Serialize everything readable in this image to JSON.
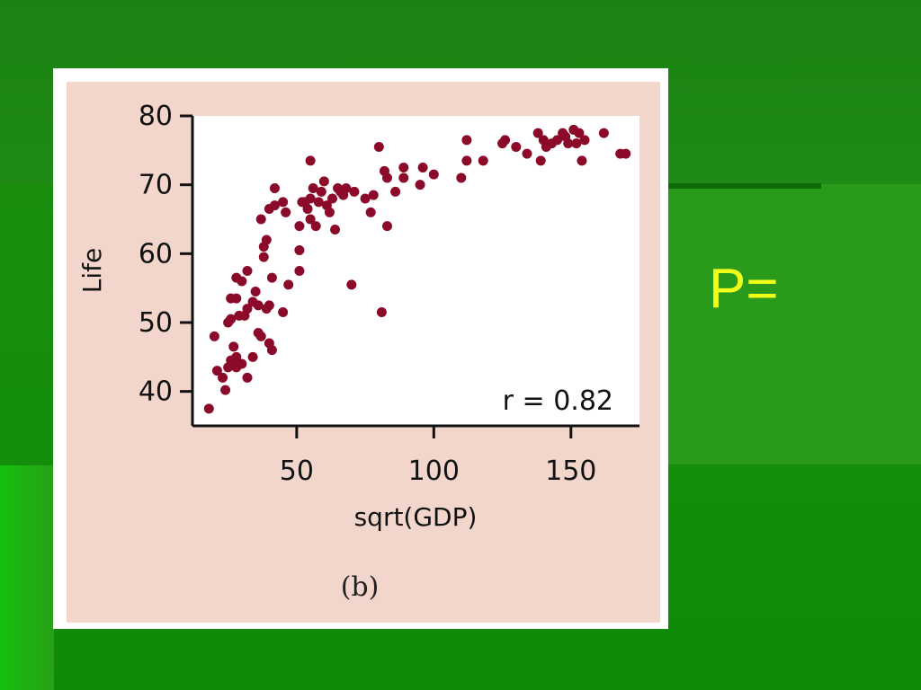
{
  "caption": "(b)",
  "side_text": "P=",
  "colors": {
    "point": "#8b0a2a",
    "panel_bg": "#f2d6cc",
    "plot_bg": "#ffffff"
  },
  "chart_data": {
    "type": "scatter",
    "title": "",
    "xlabel": "sqrt(GDP)",
    "ylabel": "Life",
    "xlim": [
      12,
      175
    ],
    "ylim": [
      35,
      80
    ],
    "xticks": [
      50,
      100,
      150
    ],
    "yticks": [
      40,
      50,
      60,
      70,
      80
    ],
    "xtick_labels": [
      "50",
      "100",
      "150"
    ],
    "ytick_labels": [
      "40",
      "50",
      "60",
      "70",
      "80"
    ],
    "annotation": "r = 0.82",
    "grid": false,
    "points": [
      [
        18,
        37.5
      ],
      [
        20,
        48
      ],
      [
        21,
        43
      ],
      [
        23,
        42
      ],
      [
        24,
        40.2
      ],
      [
        25,
        50
      ],
      [
        25,
        43.5
      ],
      [
        26,
        44.5
      ],
      [
        26,
        53.5
      ],
      [
        26,
        50.5
      ],
      [
        27,
        44
      ],
      [
        27,
        46.5
      ],
      [
        28,
        45
      ],
      [
        28,
        53.5
      ],
      [
        28,
        56.5
      ],
      [
        28,
        43.5
      ],
      [
        29,
        51
      ],
      [
        30,
        44
      ],
      [
        30,
        56
      ],
      [
        31,
        51
      ],
      [
        32,
        57.5
      ],
      [
        32,
        52
      ],
      [
        32,
        42
      ],
      [
        34,
        53
      ],
      [
        34,
        45
      ],
      [
        35,
        54.5
      ],
      [
        36,
        52.5
      ],
      [
        36,
        48.5
      ],
      [
        37,
        65
      ],
      [
        37,
        48
      ],
      [
        38,
        61
      ],
      [
        38,
        59.5
      ],
      [
        39,
        52
      ],
      [
        39,
        62
      ],
      [
        40,
        66.5
      ],
      [
        40,
        52.5
      ],
      [
        40,
        47
      ],
      [
        41,
        46
      ],
      [
        41,
        56.5
      ],
      [
        42,
        67
      ],
      [
        42,
        69.5
      ],
      [
        45,
        67.5
      ],
      [
        45,
        51.5
      ],
      [
        46,
        66
      ],
      [
        47,
        55.5
      ],
      [
        51,
        64
      ],
      [
        51,
        60.5
      ],
      [
        51,
        57.5
      ],
      [
        52,
        67.5
      ],
      [
        53,
        67.5
      ],
      [
        54,
        66.5
      ],
      [
        55,
        65
      ],
      [
        55,
        73.5
      ],
      [
        55,
        68
      ],
      [
        56,
        69.5
      ],
      [
        57,
        64
      ],
      [
        58,
        67.5
      ],
      [
        59,
        69
      ],
      [
        60,
        70.5
      ],
      [
        61,
        67
      ],
      [
        62,
        66
      ],
      [
        63,
        68
      ],
      [
        64,
        63.5
      ],
      [
        65,
        69.5
      ],
      [
        66,
        69
      ],
      [
        67,
        68.5
      ],
      [
        68,
        69.5
      ],
      [
        70,
        55.5
      ],
      [
        71,
        69
      ],
      [
        75,
        68
      ],
      [
        77,
        66
      ],
      [
        78,
        68.5
      ],
      [
        80,
        75.5
      ],
      [
        81,
        51.5
      ],
      [
        82,
        72
      ],
      [
        83,
        64
      ],
      [
        83,
        71
      ],
      [
        86,
        69
      ],
      [
        89,
        71
      ],
      [
        89,
        72.5
      ],
      [
        95,
        70
      ],
      [
        96,
        72.5
      ],
      [
        100,
        71.5
      ],
      [
        110,
        71
      ],
      [
        112,
        73.5
      ],
      [
        112,
        76.5
      ],
      [
        118,
        73.5
      ],
      [
        125,
        76
      ],
      [
        126,
        76.5
      ],
      [
        130,
        75.5
      ],
      [
        134,
        74.5
      ],
      [
        138,
        77.5
      ],
      [
        139,
        73.5
      ],
      [
        140,
        76.5
      ],
      [
        141,
        75.5
      ],
      [
        143,
        76
      ],
      [
        145,
        76.5
      ],
      [
        147,
        77.5
      ],
      [
        148,
        77
      ],
      [
        149,
        76
      ],
      [
        151,
        78
      ],
      [
        152,
        76
      ],
      [
        153,
        77.5
      ],
      [
        154,
        73.5
      ],
      [
        155,
        76.5
      ],
      [
        162,
        77.5
      ],
      [
        168,
        74.5
      ],
      [
        170,
        74.5
      ]
    ]
  }
}
